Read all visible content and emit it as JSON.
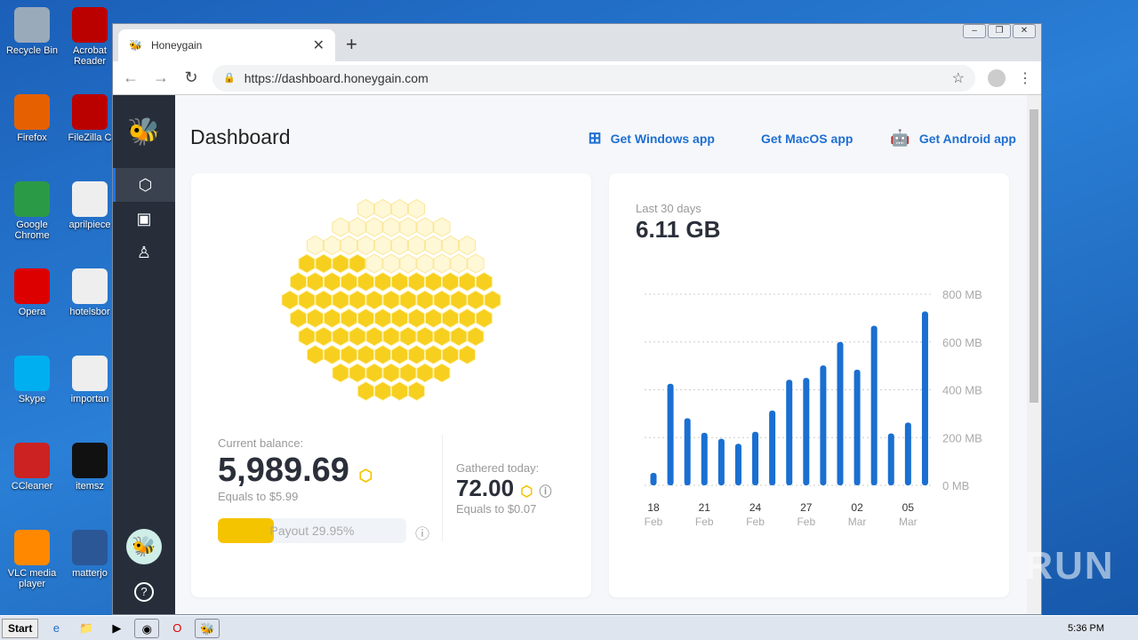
{
  "desktop": {
    "icons": [
      {
        "label": "Recycle Bin",
        "color": "#9ab"
      },
      {
        "label": "Acrobat Reader",
        "color": "#b00"
      },
      {
        "label": "Firefox",
        "color": "#e66000"
      },
      {
        "label": "FileZilla C",
        "color": "#b00"
      },
      {
        "label": "Google Chrome",
        "color": "#2b9a46"
      },
      {
        "label": "aprilpiece",
        "color": "#eee"
      },
      {
        "label": "Opera",
        "color": "#d00"
      },
      {
        "label": "hotelsbor",
        "color": "#eee"
      },
      {
        "label": "Skype",
        "color": "#00aff0"
      },
      {
        "label": "importan",
        "color": "#eee"
      },
      {
        "label": "CCleaner",
        "color": "#c22"
      },
      {
        "label": "itemsz",
        "color": "#111"
      },
      {
        "label": "VLC media player",
        "color": "#f80"
      },
      {
        "label": "matterjo",
        "color": "#2b5797"
      }
    ]
  },
  "browser": {
    "tab_title": "Honeygain",
    "url": "https://dashboard.honeygain.com"
  },
  "page": {
    "title": "Dashboard",
    "apps": [
      {
        "label": "Get Windows app",
        "icon": "windows-icon"
      },
      {
        "label": "Get MacOS app",
        "icon": "apple-icon"
      },
      {
        "label": "Get Android app",
        "icon": "android-icon"
      }
    ],
    "balance": {
      "label": "Current balance:",
      "value": "5,989.69",
      "equals": "Equals to $5.99"
    },
    "payout": {
      "label": "Payout 29.95%",
      "percent": 29.95
    },
    "today": {
      "label": "Gathered today:",
      "value": "72.00",
      "equals": "Equals to $0.07"
    },
    "traffic": {
      "label": "Last 30 days",
      "value": "6.11 GB"
    },
    "accent": "#1a6fd1",
    "honey": "#f5c400"
  },
  "chart_data": {
    "type": "bar",
    "categories": [
      "18 Feb",
      "19 Feb",
      "20 Feb",
      "21 Feb",
      "22 Feb",
      "23 Feb",
      "24 Feb",
      "25 Feb",
      "26 Feb",
      "27 Feb",
      "28 Feb",
      "01 Mar",
      "02 Mar",
      "03 Mar",
      "04 Mar",
      "05 Mar",
      "06 Mar"
    ],
    "values": [
      52,
      425,
      281,
      220,
      195,
      174,
      224,
      313,
      442,
      450,
      502,
      600,
      484,
      668,
      217,
      263,
      728
    ],
    "unit": "MB",
    "ylim": [
      0,
      800
    ],
    "yticks": [
      "0 MB",
      "200 MB",
      "400 MB",
      "600 MB",
      "800 MB"
    ],
    "xticks": [
      {
        "day": "18",
        "month": "Feb",
        "index": 0
      },
      {
        "day": "21",
        "month": "Feb",
        "index": 3
      },
      {
        "day": "24",
        "month": "Feb",
        "index": 6
      },
      {
        "day": "27",
        "month": "Feb",
        "index": 9
      },
      {
        "day": "02",
        "month": "Mar",
        "index": 12
      },
      {
        "day": "05",
        "month": "Mar",
        "index": 15
      }
    ],
    "grid": true,
    "color": "#1a6fd1"
  },
  "taskbar": {
    "start": "Start",
    "clock": "5:36 PM"
  },
  "watermark": "ANY RUN"
}
